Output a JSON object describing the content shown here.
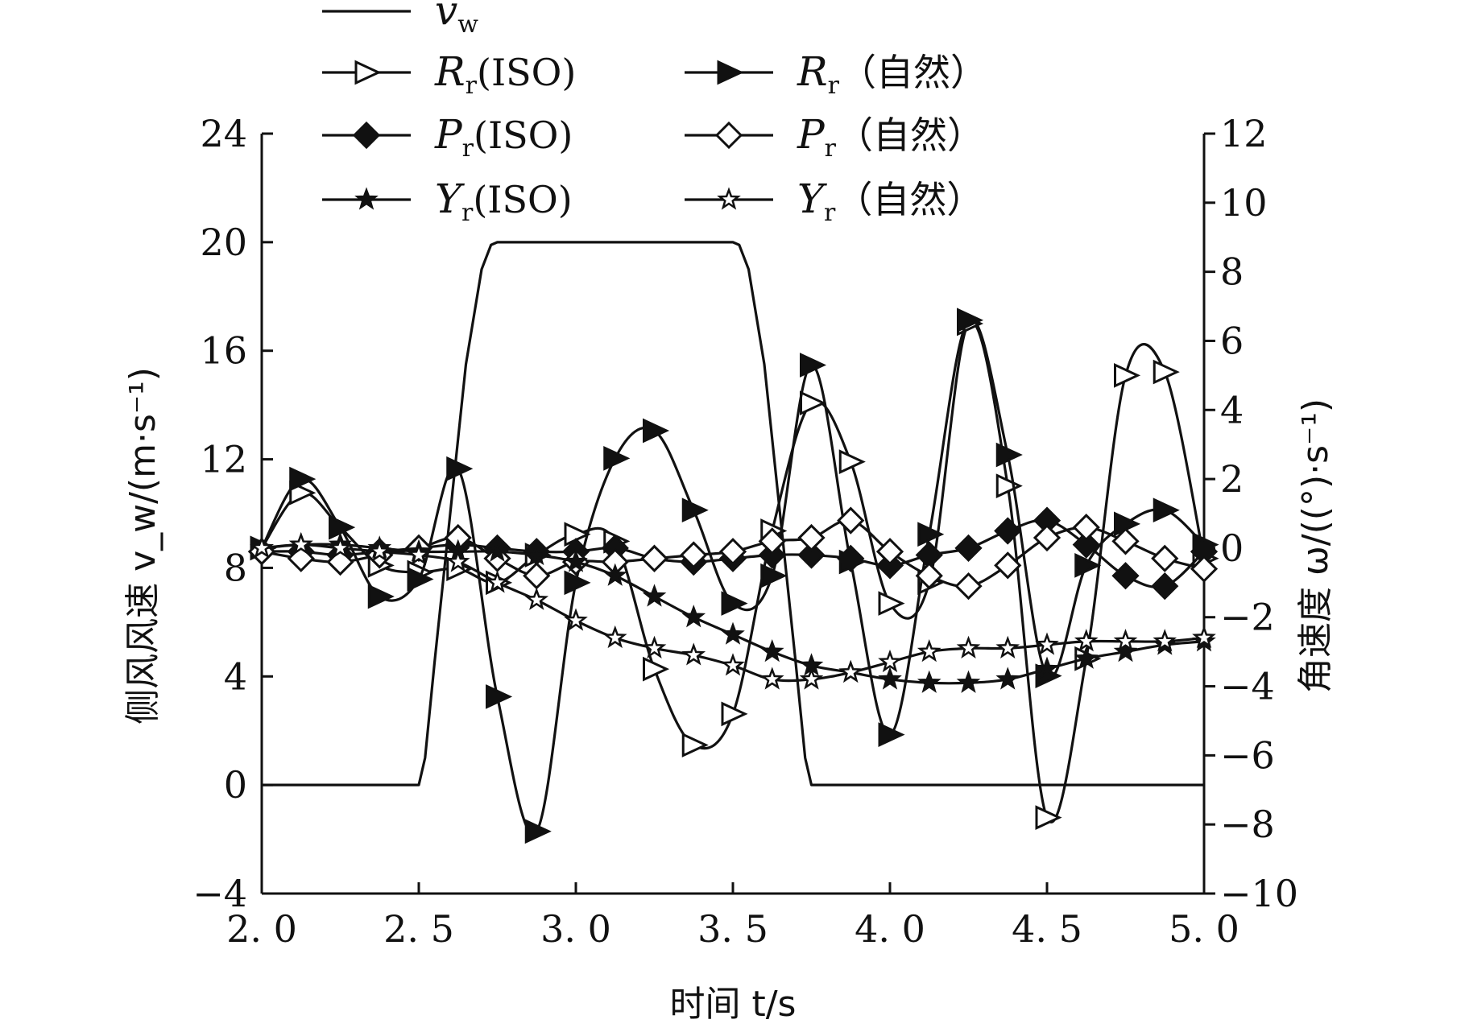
{
  "chart_data": {
    "type": "line",
    "title": "",
    "xlabel": "时间 t/s",
    "ylabel_left": "侧风风速 v_w/(m·s⁻¹)",
    "ylabel_right": "角速度 ω/((°)·s⁻¹)",
    "x_ticks": [
      "2.0",
      "2.5",
      "3.0",
      "3.5",
      "4.0",
      "4.5",
      "5.0"
    ],
    "y_left_ticks": [
      "-4",
      "0",
      "4",
      "8",
      "12",
      "16",
      "20",
      "24"
    ],
    "y_right_ticks": [
      "-10",
      "-8",
      "-6",
      "-4",
      "-2",
      "0",
      "2",
      "4",
      "6",
      "8",
      "10",
      "12"
    ],
    "xlim": [
      2.0,
      5.0
    ],
    "ylim_left": [
      -4,
      24
    ],
    "ylim_right": [
      -10,
      12
    ],
    "grid": false,
    "legend_position": "top",
    "series": [
      {
        "name": "v_w",
        "display": "vw",
        "axis": "left",
        "marker": "none",
        "x": [
          2.0,
          2.5,
          2.52,
          2.55,
          2.6,
          2.65,
          2.7,
          2.73,
          2.75,
          3.5,
          3.52,
          3.55,
          3.6,
          3.65,
          3.7,
          3.73,
          3.75,
          5.0
        ],
        "y": [
          0,
          0,
          1.0,
          4.5,
          10.0,
          15.5,
          19.0,
          19.9,
          20,
          20,
          19.9,
          19.0,
          15.5,
          10.0,
          4.5,
          1.0,
          0,
          0
        ]
      },
      {
        "name": "R_r(ISO)",
        "display": "Rr(ISO)",
        "axis": "right",
        "marker": "tri-open",
        "x": [
          2.0,
          2.125,
          2.25,
          2.375,
          2.5,
          2.625,
          2.75,
          2.875,
          3.0,
          3.125,
          3.25,
          3.375,
          3.5,
          3.625,
          3.75,
          3.875,
          4.0,
          4.125,
          4.25,
          4.375,
          4.5,
          4.625,
          4.75,
          4.875,
          5.0
        ],
        "y": [
          0.0,
          1.6,
          0.6,
          -0.5,
          -0.7,
          -0.6,
          -1.0,
          -0.2,
          0.4,
          0.2,
          -3.5,
          -5.7,
          -4.8,
          0.5,
          4.2,
          2.5,
          -1.6,
          -1.0,
          6.5,
          1.8,
          -7.8,
          -3.2,
          5.0,
          5.1,
          -0.3
        ]
      },
      {
        "name": "R_r(自然)",
        "display": "Rr(自然)",
        "axis": "right",
        "marker": "tri-filled",
        "x": [
          2.0,
          2.125,
          2.25,
          2.375,
          2.5,
          2.625,
          2.75,
          2.875,
          3.0,
          3.125,
          3.25,
          3.375,
          3.5,
          3.625,
          3.75,
          3.875,
          4.0,
          4.125,
          4.25,
          4.375,
          4.5,
          4.625,
          4.75,
          4.875,
          5.0
        ],
        "y": [
          0.0,
          2.0,
          0.6,
          -1.4,
          -0.9,
          2.3,
          -4.3,
          -8.2,
          -1.0,
          2.6,
          3.4,
          1.1,
          -1.6,
          -0.8,
          5.3,
          -0.4,
          -5.4,
          0.4,
          6.6,
          2.7,
          -3.7,
          -0.5,
          0.7,
          1.1,
          0.1
        ]
      },
      {
        "name": "P_r(ISO)",
        "display": "Pr(ISO)",
        "axis": "right",
        "marker": "diamond-filled",
        "x": [
          2.0,
          2.125,
          2.25,
          2.375,
          2.5,
          2.625,
          2.75,
          2.875,
          3.0,
          3.125,
          3.25,
          3.375,
          3.5,
          3.625,
          3.75,
          3.875,
          4.0,
          4.125,
          4.25,
          4.375,
          4.5,
          4.625,
          4.75,
          4.875,
          5.0
        ],
        "y": [
          -0.1,
          -0.1,
          -0.2,
          -0.1,
          0.0,
          0.1,
          0.0,
          -0.1,
          -0.1,
          0.0,
          -0.3,
          -0.4,
          -0.3,
          -0.2,
          -0.2,
          -0.3,
          -0.5,
          -0.2,
          0.0,
          0.5,
          0.8,
          0.1,
          -0.8,
          -1.1,
          -0.1
        ]
      },
      {
        "name": "P_r(自然)",
        "display": "Pr(自然)",
        "axis": "right",
        "marker": "diamond-open",
        "x": [
          2.0,
          2.125,
          2.25,
          2.375,
          2.5,
          2.625,
          2.75,
          2.875,
          3.0,
          3.125,
          3.25,
          3.375,
          3.5,
          3.625,
          3.75,
          3.875,
          4.0,
          4.125,
          4.25,
          4.375,
          4.5,
          4.625,
          4.75,
          4.875,
          5.0
        ],
        "y": [
          -0.1,
          -0.3,
          -0.4,
          -0.2,
          0.0,
          0.3,
          -0.3,
          -0.8,
          -0.4,
          -0.4,
          -0.3,
          -0.2,
          -0.1,
          0.2,
          0.3,
          0.8,
          -0.1,
          -0.8,
          -1.1,
          -0.5,
          0.3,
          0.6,
          0.2,
          -0.3,
          -0.6
        ]
      },
      {
        "name": "Y_r(ISO)",
        "display": "Yr(ISO)",
        "axis": "right",
        "marker": "star-filled",
        "x": [
          2.0,
          2.125,
          2.25,
          2.375,
          2.5,
          2.625,
          2.75,
          2.875,
          3.0,
          3.125,
          3.25,
          3.375,
          3.5,
          3.625,
          3.75,
          3.875,
          4.0,
          4.125,
          4.25,
          4.375,
          4.5,
          4.625,
          4.75,
          4.875,
          5.0
        ],
        "y": [
          0.0,
          0.1,
          0.1,
          0.0,
          -0.1,
          -0.1,
          -0.1,
          -0.2,
          -0.4,
          -0.8,
          -1.4,
          -2.0,
          -2.5,
          -3.0,
          -3.4,
          -3.6,
          -3.8,
          -3.9,
          -3.9,
          -3.8,
          -3.5,
          -3.2,
          -3.0,
          -2.8,
          -2.7
        ]
      },
      {
        "name": "Y_r(自然)",
        "display": "Yr(自然)",
        "axis": "right",
        "marker": "star-open",
        "x": [
          2.0,
          2.125,
          2.25,
          2.375,
          2.5,
          2.625,
          2.75,
          2.875,
          3.0,
          3.125,
          3.25,
          3.375,
          3.5,
          3.625,
          3.75,
          3.875,
          4.0,
          4.125,
          4.25,
          4.375,
          4.5,
          4.625,
          4.75,
          4.875,
          5.0
        ],
        "y": [
          0.0,
          0.1,
          0.0,
          -0.1,
          -0.2,
          -0.4,
          -1.0,
          -1.5,
          -2.1,
          -2.6,
          -2.9,
          -3.1,
          -3.4,
          -3.8,
          -3.8,
          -3.6,
          -3.3,
          -3.0,
          -2.9,
          -2.9,
          -2.8,
          -2.7,
          -2.7,
          -2.7,
          -2.6
        ]
      }
    ]
  },
  "legend": {
    "rows": [
      [
        {
          "series": 0,
          "main": "v",
          "sub": "w",
          "suffix": ""
        }
      ],
      [
        {
          "series": 1,
          "main": "R",
          "sub": "r",
          "suffix": "(ISO)"
        },
        {
          "series": 2,
          "main": "R",
          "sub": "r",
          "suffix": "（自然）"
        }
      ],
      [
        {
          "series": 3,
          "main": "P",
          "sub": "r",
          "suffix": "(ISO)"
        },
        {
          "series": 4,
          "main": "P",
          "sub": "r",
          "suffix": "（自然）"
        }
      ],
      [
        {
          "series": 5,
          "main": "Y",
          "sub": "r",
          "suffix": "(ISO)"
        },
        {
          "series": 6,
          "main": "Y",
          "sub": "r",
          "suffix": "（自然）"
        }
      ]
    ]
  },
  "colors": {
    "line": "#111111",
    "background": "#ffffff"
  }
}
